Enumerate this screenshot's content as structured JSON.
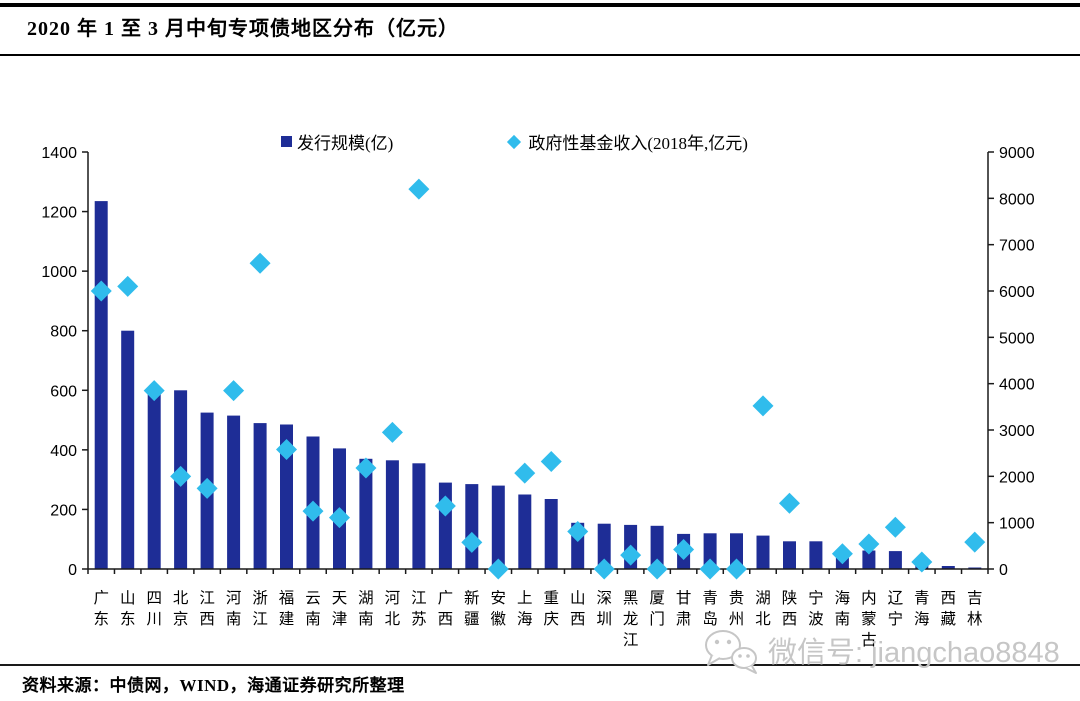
{
  "header": {
    "title": "2020 年 1 至 3 月中旬专项债地区分布（亿元）"
  },
  "legend": [
    {
      "label": "发行规模(亿)",
      "marker": "square",
      "color": "#1E2D96"
    },
    {
      "label": "政府性基金收入(2018年,亿元)",
      "marker": "diamond",
      "color": "#30BCEC"
    }
  ],
  "chart_data": {
    "type": "bar",
    "subtype": "combo-bar-scatter",
    "title": "2020 年 1 至 3 月中旬专项债地区分布（亿元）",
    "categories": [
      "广东",
      "山东",
      "四川",
      "北京",
      "江西",
      "河南",
      "浙江",
      "福建",
      "云南",
      "天津",
      "湖南",
      "河北",
      "江苏",
      "广西",
      "新疆",
      "安徽",
      "上海",
      "重庆",
      "山西",
      "深圳",
      "黑龙江",
      "厦门",
      "甘肃",
      "青岛",
      "贵州",
      "湖北",
      "陕西",
      "宁波",
      "海南",
      "内蒙古",
      "辽宁",
      "青海",
      "西藏",
      "吉林"
    ],
    "series": [
      {
        "name": "发行规模(亿)",
        "type": "bar",
        "axis": "left",
        "color": "#1E2D96",
        "values": [
          1235,
          800,
          610,
          600,
          525,
          515,
          490,
          485,
          445,
          405,
          370,
          365,
          355,
          290,
          285,
          280,
          250,
          235,
          155,
          152,
          148,
          145,
          118,
          120,
          120,
          112,
          93,
          93,
          56,
          62,
          60,
          18,
          10,
          5
        ]
      },
      {
        "name": "政府性基金收入(2018年,亿元)",
        "type": "scatter",
        "marker": "diamond",
        "axis": "right",
        "color": "#30BCEC",
        "values": [
          6000,
          6100,
          3850,
          2000,
          1740,
          3850,
          6600,
          2580,
          1250,
          1110,
          2180,
          2950,
          8200,
          1360,
          575,
          0,
          2070,
          2320,
          810,
          0,
          300,
          0,
          420,
          0,
          0,
          3520,
          1420,
          null,
          330,
          540,
          900,
          150,
          null,
          580
        ]
      }
    ],
    "left_axis": {
      "min": 0,
      "max": 1400,
      "step": 200,
      "ticks": [
        "0",
        "200",
        "400",
        "600",
        "800",
        "1000",
        "1200",
        "1400"
      ]
    },
    "right_axis": {
      "min": 0,
      "max": 9000,
      "step": 1000,
      "ticks": [
        "0",
        "1000",
        "2000",
        "3000",
        "4000",
        "5000",
        "6000",
        "7000",
        "8000",
        "9000"
      ]
    },
    "grid": false,
    "legend_position": "top-center"
  },
  "footer": {
    "source": "资料来源：中债网，WIND，海通证券研究所整理"
  },
  "watermark": {
    "icon": "wechat-icon",
    "text": "微信号: jiangchao8848"
  }
}
